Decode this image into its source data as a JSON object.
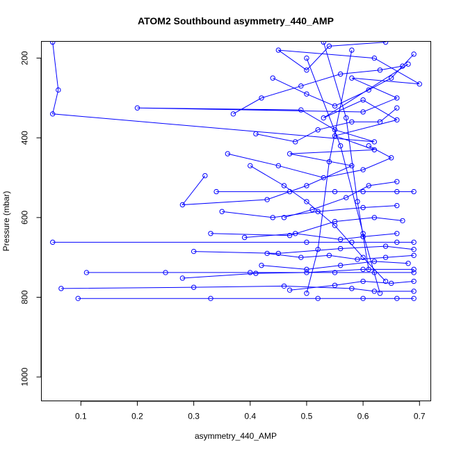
{
  "chart_data": {
    "type": "line",
    "title": "ATOM2 Southbound asymmetry_440_AMP",
    "xlabel": "asymmetry_440_AMP",
    "ylabel": "Pressure (mbar)",
    "xlim": [
      0.03,
      0.72
    ],
    "ylim": [
      1060,
      158
    ],
    "y_reversed": true,
    "xticks": [
      0.1,
      0.2,
      0.3,
      0.4,
      0.5,
      0.6,
      0.7
    ],
    "yticks": [
      200,
      400,
      600,
      800,
      1000
    ],
    "grid": false,
    "legend": "none",
    "color": "#0000ff",
    "marker": "open-circle",
    "series": [
      {
        "points": [
          [
            0.05,
            160
          ],
          [
            0.06,
            280
          ],
          [
            0.05,
            340
          ],
          [
            0.62,
            410
          ],
          [
            0.55,
            380
          ],
          [
            0.49,
            330
          ],
          [
            0.2,
            325
          ],
          [
            0.6,
            335
          ],
          [
            0.66,
            300
          ],
          [
            0.58,
            250
          ],
          [
            0.7,
            265
          ],
          [
            0.62,
            200
          ],
          [
            0.45,
            180
          ],
          [
            0.5,
            230
          ],
          [
            0.54,
            170
          ],
          [
            0.64,
            160
          ]
        ]
      },
      {
        "points": [
          [
            0.32,
            495
          ],
          [
            0.28,
            568
          ],
          [
            0.43,
            555
          ],
          [
            0.5,
            520
          ],
          [
            0.58,
            470
          ],
          [
            0.47,
            440
          ],
          [
            0.62,
            430
          ],
          [
            0.55,
            395
          ],
          [
            0.66,
            355
          ],
          [
            0.6,
            305
          ],
          [
            0.53,
            350
          ],
          [
            0.68,
            215
          ]
        ]
      },
      {
        "points": [
          [
            0.34,
            535
          ],
          [
            0.47,
            535
          ],
          [
            0.55,
            535
          ],
          [
            0.6,
            535
          ],
          [
            0.66,
            535
          ],
          [
            0.69,
            535
          ]
        ]
      },
      {
        "points": [
          [
            0.05,
            662
          ],
          [
            0.5,
            662
          ],
          [
            0.58,
            662
          ],
          [
            0.66,
            662
          ],
          [
            0.69,
            662
          ]
        ]
      },
      {
        "points": [
          [
            0.11,
            738
          ],
          [
            0.25,
            738
          ],
          [
            0.4,
            738
          ],
          [
            0.55,
            738
          ],
          [
            0.62,
            738
          ],
          [
            0.69,
            738
          ]
        ]
      },
      {
        "points": [
          [
            0.065,
            778
          ],
          [
            0.3,
            775
          ],
          [
            0.46,
            772
          ],
          [
            0.58,
            778
          ],
          [
            0.62,
            785
          ],
          [
            0.69,
            785
          ]
        ]
      },
      {
        "points": [
          [
            0.095,
            803
          ],
          [
            0.33,
            803
          ],
          [
            0.52,
            803
          ],
          [
            0.6,
            803
          ],
          [
            0.66,
            803
          ],
          [
            0.69,
            803
          ]
        ]
      },
      {
        "points": [
          [
            0.28,
            752
          ],
          [
            0.41,
            740
          ],
          [
            0.5,
            738
          ],
          [
            0.6,
            730
          ],
          [
            0.69,
            730
          ]
        ]
      },
      {
        "points": [
          [
            0.3,
            685
          ],
          [
            0.45,
            690
          ],
          [
            0.56,
            678
          ],
          [
            0.64,
            672
          ],
          [
            0.69,
            680
          ]
        ]
      },
      {
        "points": [
          [
            0.33,
            640
          ],
          [
            0.47,
            645
          ],
          [
            0.55,
            610
          ],
          [
            0.62,
            600
          ],
          [
            0.67,
            608
          ]
        ]
      },
      {
        "points": [
          [
            0.35,
            585
          ],
          [
            0.44,
            600
          ],
          [
            0.52,
            585
          ],
          [
            0.6,
            575
          ],
          [
            0.66,
            570
          ]
        ]
      },
      {
        "points": [
          [
            0.36,
            440
          ],
          [
            0.45,
            470
          ],
          [
            0.53,
            500
          ],
          [
            0.6,
            480
          ],
          [
            0.65,
            450
          ],
          [
            0.61,
            420
          ]
        ]
      },
      {
        "points": [
          [
            0.37,
            340
          ],
          [
            0.42,
            300
          ],
          [
            0.49,
            270
          ],
          [
            0.56,
            240
          ],
          [
            0.63,
            230
          ],
          [
            0.67,
            220
          ]
        ]
      },
      {
        "points": [
          [
            0.4,
            470
          ],
          [
            0.46,
            520
          ],
          [
            0.5,
            560
          ],
          [
            0.55,
            620
          ],
          [
            0.6,
            700
          ],
          [
            0.64,
            760
          ]
        ]
      },
      {
        "points": [
          [
            0.42,
            720
          ],
          [
            0.5,
            730
          ],
          [
            0.56,
            720
          ],
          [
            0.62,
            710
          ],
          [
            0.68,
            715
          ]
        ]
      },
      {
        "points": [
          [
            0.47,
            782
          ],
          [
            0.55,
            770
          ],
          [
            0.6,
            760
          ],
          [
            0.65,
            765
          ],
          [
            0.69,
            760
          ]
        ]
      },
      {
        "points": [
          [
            0.39,
            650
          ],
          [
            0.48,
            640
          ],
          [
            0.56,
            655
          ],
          [
            0.6,
            648
          ],
          [
            0.66,
            640
          ]
        ]
      },
      {
        "points": [
          [
            0.41,
            390
          ],
          [
            0.48,
            410
          ],
          [
            0.52,
            380
          ],
          [
            0.58,
            360
          ],
          [
            0.63,
            360
          ],
          [
            0.66,
            325
          ]
        ]
      },
      {
        "points": [
          [
            0.44,
            250
          ],
          [
            0.5,
            290
          ],
          [
            0.55,
            320
          ],
          [
            0.61,
            280
          ],
          [
            0.65,
            250
          ],
          [
            0.69,
            190
          ]
        ]
      },
      {
        "points": [
          [
            0.46,
            600
          ],
          [
            0.51,
            580
          ],
          [
            0.57,
            550
          ],
          [
            0.61,
            520
          ],
          [
            0.66,
            510
          ]
        ]
      },
      {
        "points": [
          [
            0.43,
            690
          ],
          [
            0.49,
            700
          ],
          [
            0.54,
            695
          ],
          [
            0.59,
            705
          ],
          [
            0.64,
            700
          ],
          [
            0.69,
            695
          ]
        ]
      },
      {
        "points": [
          [
            0.5,
            200
          ],
          [
            0.56,
            420
          ],
          [
            0.6,
            640
          ],
          [
            0.63,
            790
          ]
        ]
      },
      {
        "points": [
          [
            0.53,
            160
          ],
          [
            0.57,
            350
          ],
          [
            0.59,
            560
          ],
          [
            0.61,
            730
          ]
        ]
      },
      {
        "points": [
          [
            0.58,
            180
          ],
          [
            0.54,
            460
          ],
          [
            0.52,
            680
          ],
          [
            0.5,
            790
          ]
        ]
      }
    ]
  }
}
